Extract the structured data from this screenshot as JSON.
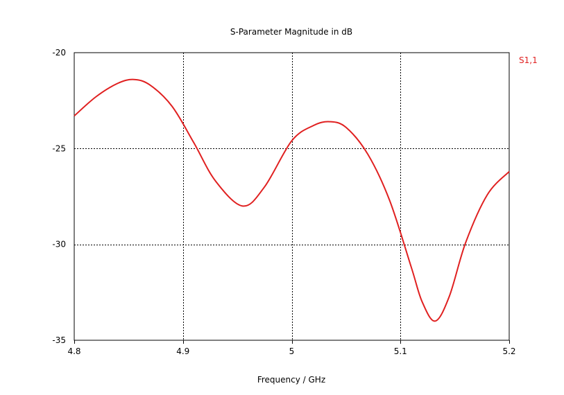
{
  "chart_data": {
    "type": "line",
    "title": "S-Parameter Magnitude in dB",
    "xlabel": "Frequency / GHz",
    "ylabel": "",
    "xlim": [
      4.8,
      5.2
    ],
    "ylim": [
      -35,
      -20
    ],
    "xticks": [
      4.8,
      4.9,
      5.0,
      5.1,
      5.2
    ],
    "xtick_labels": [
      "4.8",
      "4.9",
      "5",
      "5.1",
      "5.2"
    ],
    "yticks": [
      -20,
      -25,
      -30,
      -35
    ],
    "ytick_labels": [
      "-20",
      "-25",
      "-30",
      "-35"
    ],
    "grid": true,
    "legend": "top-right",
    "series": [
      {
        "name": "S1,1",
        "color": "#e02020",
        "x": [
          4.8,
          4.82,
          4.84,
          4.855,
          4.87,
          4.89,
          4.91,
          4.93,
          4.955,
          4.975,
          5.0,
          5.02,
          5.035,
          5.05,
          5.07,
          5.09,
          5.11,
          5.12,
          5.132,
          5.145,
          5.16,
          5.18,
          5.2
        ],
        "y": [
          -23.3,
          -22.3,
          -21.6,
          -21.4,
          -21.7,
          -22.8,
          -24.7,
          -26.7,
          -28.0,
          -27.0,
          -24.6,
          -23.8,
          -23.6,
          -23.9,
          -25.3,
          -27.7,
          -31.2,
          -33.0,
          -34.0,
          -32.7,
          -29.9,
          -27.4,
          -26.2
        ]
      }
    ]
  }
}
